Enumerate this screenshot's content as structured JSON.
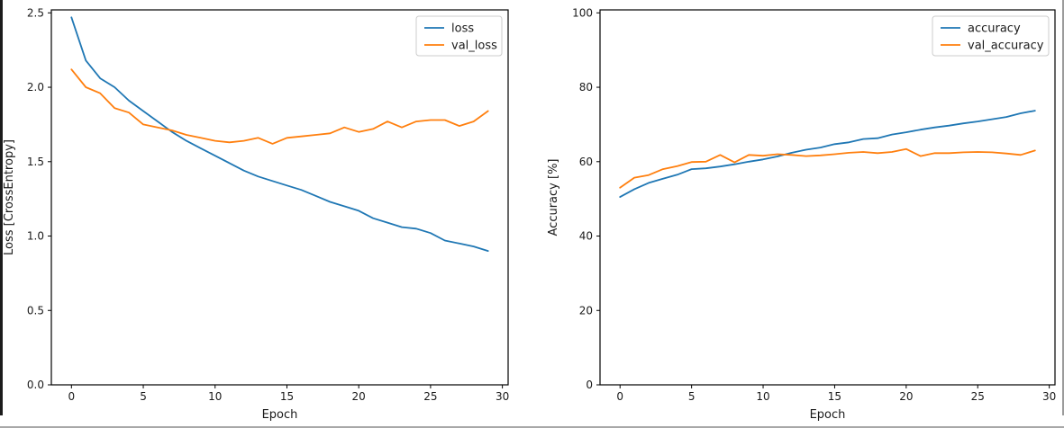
{
  "frame": {
    "background": "#ffffff",
    "left_bar_color": "#1b1b1b",
    "right_bar_color": "#9b9b9b",
    "bottom_bar_color": "#a8a8a8",
    "axis_color": "#000000",
    "legend_border_color": "#cccccc"
  },
  "colors": {
    "blue_series": "#1f77b4",
    "orange_series": "#ff7f0e"
  },
  "chart_data": [
    {
      "type": "line",
      "title": "",
      "xlabel": "Epoch",
      "ylabel": "Loss [CrossEntropy]",
      "grid": false,
      "legend_position": "upper right",
      "xlim": [
        -1.4,
        30.4
      ],
      "ylim": [
        0,
        2.52
      ],
      "xticks": [
        0,
        5,
        10,
        15,
        20,
        25,
        30
      ],
      "xtick_labels": [
        "0",
        "5",
        "10",
        "15",
        "20",
        "25",
        "30"
      ],
      "yticks": [
        0.0,
        0.5,
        1.0,
        1.5,
        2.0,
        2.5
      ],
      "ytick_labels": [
        "0.0",
        "0.5",
        "1.0",
        "1.5",
        "2.0",
        "2.5"
      ],
      "x": [
        0,
        1,
        2,
        3,
        4,
        5,
        6,
        7,
        8,
        9,
        10,
        11,
        12,
        13,
        14,
        15,
        16,
        17,
        18,
        19,
        20,
        21,
        22,
        23,
        24,
        25,
        26,
        27,
        28,
        29
      ],
      "series": [
        {
          "name": "loss",
          "color": "#1f77b4",
          "values": [
            2.47,
            2.18,
            2.06,
            2.0,
            1.91,
            1.84,
            1.77,
            1.7,
            1.64,
            1.59,
            1.54,
            1.49,
            1.44,
            1.4,
            1.37,
            1.34,
            1.31,
            1.27,
            1.23,
            1.2,
            1.17,
            1.12,
            1.09,
            1.06,
            1.05,
            1.02,
            0.97,
            0.95,
            0.93,
            0.9
          ]
        },
        {
          "name": "val_loss",
          "color": "#ff7f0e",
          "values": [
            2.12,
            2.0,
            1.96,
            1.86,
            1.83,
            1.75,
            1.73,
            1.71,
            1.68,
            1.66,
            1.64,
            1.63,
            1.64,
            1.66,
            1.62,
            1.66,
            1.67,
            1.68,
            1.69,
            1.73,
            1.7,
            1.72,
            1.77,
            1.73,
            1.77,
            1.78,
            1.78,
            1.74,
            1.77,
            1.84
          ]
        }
      ]
    },
    {
      "type": "line",
      "title": "",
      "xlabel": "Epoch",
      "ylabel": "Accuracy [%]",
      "grid": false,
      "legend_position": "upper right",
      "xlim": [
        -1.4,
        30.4
      ],
      "ylim": [
        0,
        100.8
      ],
      "xticks": [
        0,
        5,
        10,
        15,
        20,
        25,
        30
      ],
      "xtick_labels": [
        "0",
        "5",
        "10",
        "15",
        "20",
        "25",
        "30"
      ],
      "yticks": [
        0,
        20,
        40,
        60,
        80,
        100
      ],
      "ytick_labels": [
        "0",
        "20",
        "40",
        "60",
        "80",
        "100"
      ],
      "x": [
        0,
        1,
        2,
        3,
        4,
        5,
        6,
        7,
        8,
        9,
        10,
        11,
        12,
        13,
        14,
        15,
        16,
        17,
        18,
        19,
        20,
        21,
        22,
        23,
        24,
        25,
        26,
        27,
        28,
        29
      ],
      "series": [
        {
          "name": "accuracy",
          "color": "#1f77b4",
          "values": [
            50.5,
            52.6,
            54.3,
            55.4,
            56.5,
            58.0,
            58.2,
            58.7,
            59.3,
            60.0,
            60.6,
            61.4,
            62.4,
            63.2,
            63.8,
            64.7,
            65.2,
            66.1,
            66.3,
            67.3,
            67.9,
            68.6,
            69.2,
            69.7,
            70.3,
            70.8,
            71.4,
            72.0,
            73.0,
            73.7
          ]
        },
        {
          "name": "val_accuracy",
          "color": "#ff7f0e",
          "values": [
            53.0,
            55.7,
            56.4,
            58.0,
            58.8,
            59.9,
            60.0,
            61.8,
            59.8,
            61.8,
            61.6,
            62.0,
            61.8,
            61.5,
            61.7,
            62.0,
            62.4,
            62.6,
            62.3,
            62.6,
            63.4,
            61.5,
            62.3,
            62.3,
            62.5,
            62.6,
            62.5,
            62.2,
            61.8,
            63.0
          ]
        }
      ]
    }
  ]
}
